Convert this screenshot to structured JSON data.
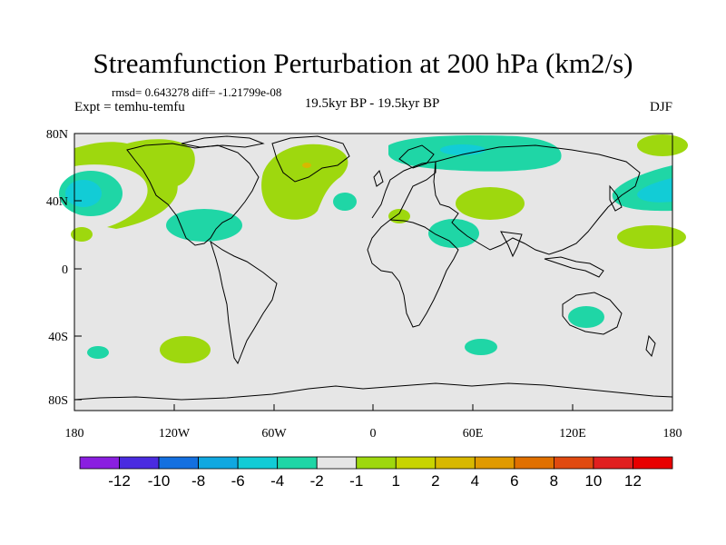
{
  "title": "Streamfunction Perturbation at 200 hPa (km2/s)",
  "stats": {
    "rmsd_text": "rmsd= 0.643278 diff= -1.21799e-08"
  },
  "experiment": "Expt = temhu-temfu",
  "period": "19.5kyr BP - 19.5kyr BP",
  "season": "DJF",
  "map_axes": {
    "lat_labels": [
      "80N",
      "40N",
      "0",
      "40S",
      "80S"
    ],
    "lon_labels": [
      "180",
      "120W",
      "60W",
      "0",
      "60E",
      "120E",
      "180"
    ]
  },
  "colors": {
    "background": "#e6e6e6",
    "coast": "#000000",
    "level_neg_2": "#1fd6a6",
    "level_neg_4": "#12ccd6",
    "level_neg_6": "#10a8e0",
    "level_pos_2": "#9ed80e",
    "level_pos_4": "#d8b800"
  },
  "colorbar": {
    "labels": [
      "-12",
      "-10",
      "-8",
      "-6",
      "-4",
      "-2",
      "-1",
      "1",
      "2",
      "4",
      "6",
      "8",
      "10",
      "12"
    ],
    "colors": [
      "#8a1ee0",
      "#4a2be0",
      "#1470e0",
      "#10a8e0",
      "#12ccd6",
      "#1fd6a6",
      "#e6e6e6",
      "#9ed80e",
      "#c8d400",
      "#d8b800",
      "#e09a00",
      "#e07000",
      "#e04a10",
      "#e02020",
      "#e80000"
    ]
  }
}
